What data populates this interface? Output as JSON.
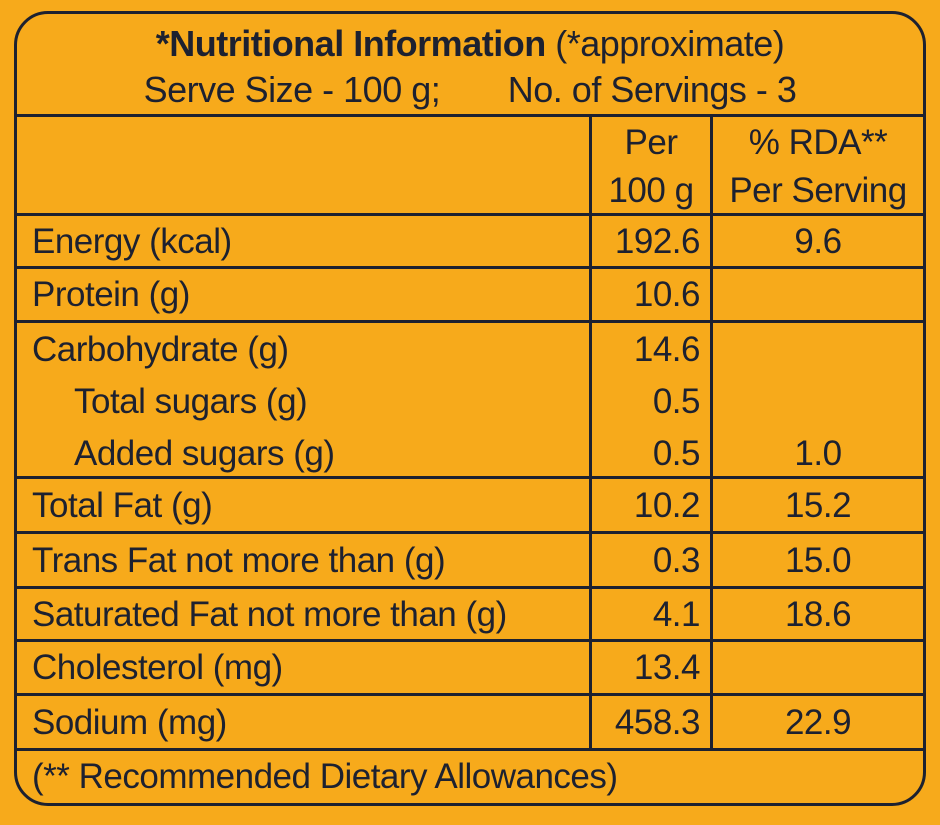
{
  "colors": {
    "background": "#F7AA1B",
    "ink": "#1D2130"
  },
  "header": {
    "title_bold": "*Nutritional Information",
    "title_note": "(*approximate)",
    "serve_size": "Serve Size - 100 g;",
    "servings": "No. of Servings - 3"
  },
  "columns": {
    "per_line1": "Per",
    "per_line2": "100 g",
    "rda_line1": "% RDA**",
    "rda_line2": "Per Serving"
  },
  "rows": [
    {
      "label": "Energy (kcal)",
      "per100": "192.6",
      "rda": "9.6"
    },
    {
      "label": "Protein (g)",
      "per100": "10.6",
      "rda": ""
    },
    {
      "lines": [
        {
          "label": "Carbohydrate (g)",
          "per100": "14.6",
          "rda": ""
        },
        {
          "label": "Total sugars (g)",
          "per100": "0.5",
          "rda": ""
        },
        {
          "label": "Added sugars (g)",
          "per100": "0.5",
          "rda": "1.0"
        }
      ]
    },
    {
      "label": "Total Fat (g)",
      "per100": "10.2",
      "rda": "15.2"
    },
    {
      "label": "Trans Fat not more than (g)",
      "per100": "0.3",
      "rda": "15.0"
    },
    {
      "label": "Saturated Fat not more than (g)",
      "per100": "4.1",
      "rda": "18.6"
    },
    {
      "label": "Cholesterol (mg)",
      "per100": "13.4",
      "rda": ""
    },
    {
      "label": "Sodium (mg)",
      "per100": "458.3",
      "rda": "22.9"
    }
  ],
  "footer": {
    "note": "(** Recommended Dietary Allowances)"
  }
}
